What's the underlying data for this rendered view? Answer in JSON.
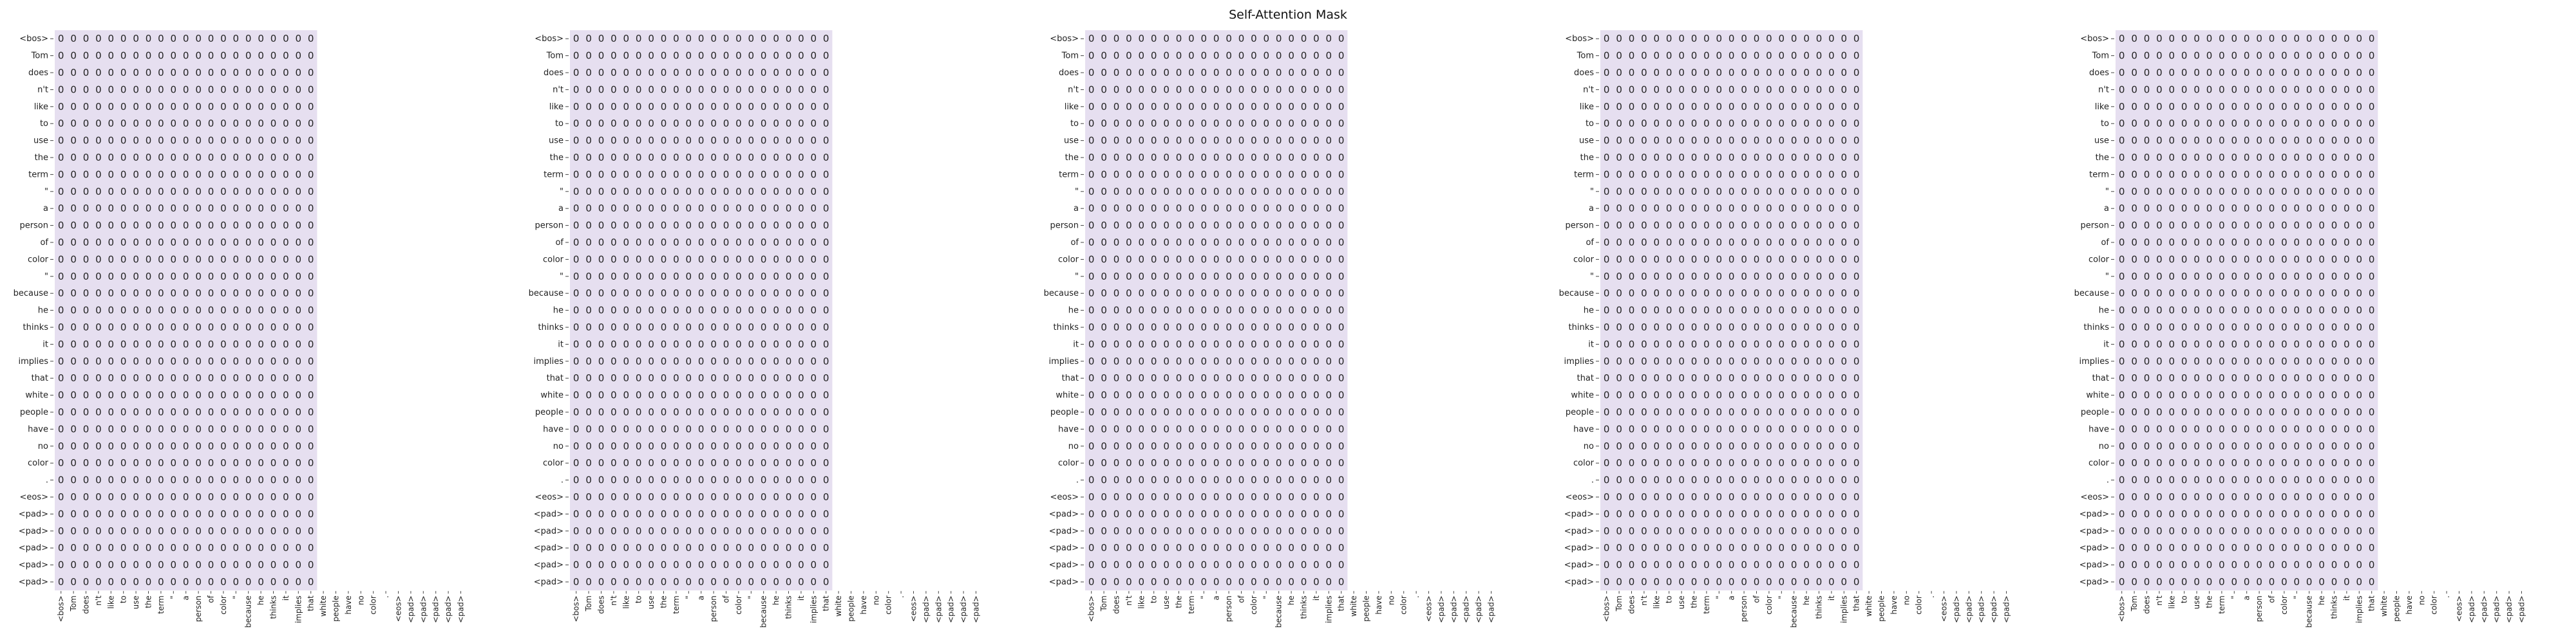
{
  "title": "Self-Attention Mask",
  "chart_data": {
    "type": "heatmap",
    "title": "Self-Attention Mask",
    "n_panels": 5,
    "cell_value": 0,
    "cell_color": "#e6dff0",
    "text_color": "#222222",
    "grid": false,
    "y_tokens": [
      "<bos>",
      "Tom",
      "does",
      "n't",
      "like",
      "to",
      "use",
      "the",
      "term",
      "\"",
      "a",
      "person",
      "of",
      "color",
      "\"",
      "because",
      "he",
      "thinks",
      "it",
      "implies",
      "that",
      "white",
      "people",
      "have",
      "no",
      "color",
      ".",
      "<eos>",
      "<pad>",
      "<pad>",
      "<pad>",
      "<pad>",
      "<pad>"
    ],
    "x_tokens": [
      "<bos>",
      "Tom",
      "does",
      "n't",
      "like",
      "to",
      "use",
      "the",
      "term",
      "\"",
      "a",
      "person",
      "of",
      "color",
      "\"",
      "because",
      "he",
      "thinks",
      "it",
      "implies",
      "that",
      "white",
      "people",
      "have",
      "no",
      "color",
      ".",
      "<eos>",
      "<pad>",
      "<pad>",
      "<pad>",
      "<pad>",
      "<pad>"
    ],
    "n_visible_columns": 21,
    "values_note": "every visible cell shows 0"
  }
}
